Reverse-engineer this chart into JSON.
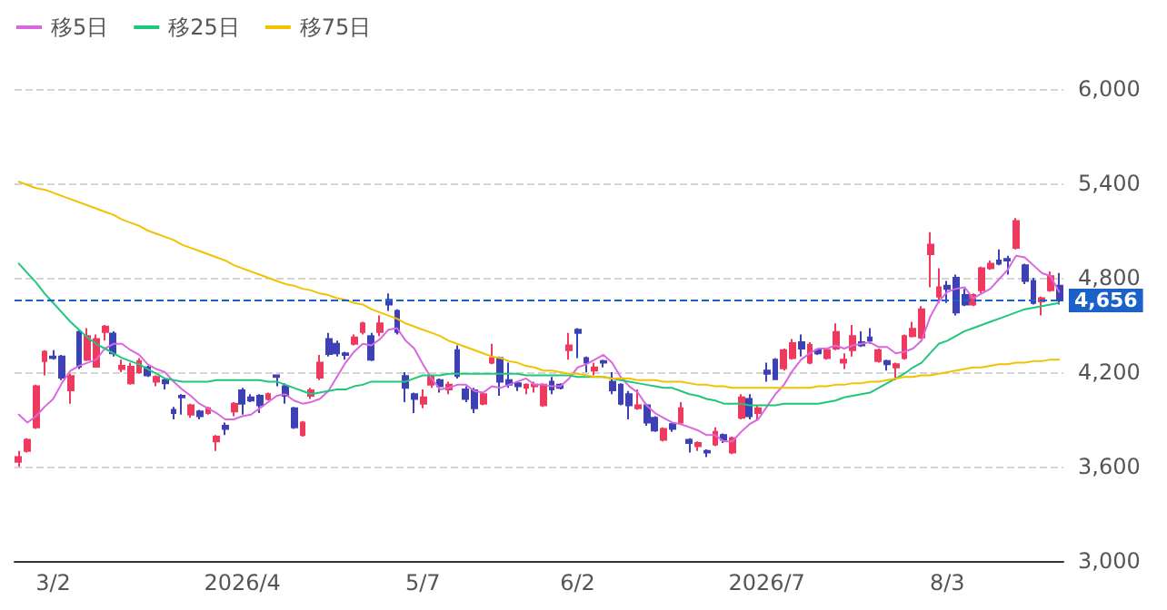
{
  "chart_data": {
    "type": "candlestick",
    "categories": [
      null,
      null,
      null,
      null,
      "3/2",
      null,
      null,
      null,
      null,
      null,
      null,
      null,
      null,
      null,
      null,
      null,
      null,
      null,
      null,
      null,
      null,
      null,
      null,
      null,
      null,
      null,
      "2026/4",
      null,
      null,
      null,
      null,
      null,
      null,
      null,
      null,
      null,
      null,
      null,
      null,
      null,
      null,
      null,
      null,
      null,
      null,
      null,
      null,
      "5/7",
      null,
      null,
      null,
      null,
      null,
      null,
      null,
      null,
      null,
      null,
      null,
      null,
      null,
      null,
      null,
      null,
      null,
      "6/2",
      null,
      null,
      null,
      null,
      null,
      null,
      null,
      null,
      null,
      null,
      null,
      null,
      null,
      null,
      null,
      null,
      null,
      null,
      null,
      null,
      null,
      "2026/7",
      null,
      null,
      null,
      null,
      null,
      null,
      null,
      null,
      null,
      null,
      null,
      null,
      null,
      null,
      null,
      null,
      null,
      null,
      null,
      null,
      "8/3",
      null,
      null,
      null,
      null,
      null,
      null,
      null,
      null,
      null,
      null,
      null,
      null,
      null
    ],
    "ohlc": [
      [
        3630,
        3700,
        3600,
        3660
      ],
      [
        3700,
        3780,
        3690,
        3770
      ],
      [
        3850,
        4120,
        3840,
        4110
      ],
      [
        4270,
        4340,
        4180,
        4330
      ],
      [
        4300,
        4340,
        4280,
        4290
      ],
      [
        4300,
        4310,
        4150,
        4165
      ],
      [
        4085,
        4190,
        4000,
        4175
      ],
      [
        4455,
        4470,
        4220,
        4235
      ],
      [
        4280,
        4480,
        4270,
        4430
      ],
      [
        4235,
        4440,
        4230,
        4410
      ],
      [
        4455,
        4500,
        4400,
        4490
      ],
      [
        4445,
        4460,
        4300,
        4320
      ],
      [
        4220,
        4280,
        4200,
        4240
      ],
      [
        4130,
        4260,
        4120,
        4235
      ],
      [
        4200,
        4290,
        4190,
        4270
      ],
      [
        4230,
        4240,
        4170,
        4180
      ],
      [
        4140,
        4180,
        4110,
        4170
      ],
      [
        4150,
        4160,
        4090,
        4130
      ],
      [
        3960,
        3980,
        3900,
        3940
      ],
      [
        4050,
        4060,
        3930,
        4040
      ],
      [
        3930,
        4000,
        3910,
        3990
      ],
      [
        3950,
        3960,
        3900,
        3920
      ],
      [
        3940,
        3980,
        3930,
        3970
      ],
      [
        3760,
        3800,
        3700,
        3790
      ],
      [
        3860,
        3880,
        3800,
        3840
      ],
      [
        3950,
        4010,
        3920,
        4000
      ],
      [
        4085,
        4100,
        3930,
        4000
      ],
      [
        4040,
        4060,
        4010,
        4020
      ],
      [
        4050,
        4060,
        3940,
        3990
      ],
      [
        4030,
        4070,
        4020,
        4060
      ],
      [
        4180,
        4180,
        4110,
        4170
      ],
      [
        4110,
        4130,
        4000,
        4050
      ],
      [
        3970,
        3980,
        3840,
        3850
      ],
      [
        3800,
        3890,
        3790,
        3880
      ],
      [
        4050,
        4100,
        4030,
        4085
      ],
      [
        4165,
        4310,
        4150,
        4260
      ],
      [
        4410,
        4450,
        4300,
        4315
      ],
      [
        4380,
        4400,
        4300,
        4320
      ],
      [
        4320,
        4330,
        4280,
        4310
      ],
      [
        4380,
        4440,
        4370,
        4420
      ],
      [
        4455,
        4520,
        4440,
        4510
      ],
      [
        4430,
        4450,
        4270,
        4280
      ],
      [
        4455,
        4560,
        4430,
        4510
      ],
      [
        4660,
        4700,
        4590,
        4630
      ],
      [
        4590,
        4600,
        4440,
        4455
      ],
      [
        4175,
        4200,
        4010,
        4100
      ],
      [
        4060,
        4070,
        3940,
        4030
      ],
      [
        4000,
        4090,
        3970,
        4040
      ],
      [
        4120,
        4180,
        4100,
        4175
      ],
      [
        4150,
        4160,
        4070,
        4110
      ],
      [
        4090,
        4140,
        4060,
        4120
      ],
      [
        4340,
        4370,
        4160,
        4175
      ],
      [
        4090,
        4110,
        4010,
        4030
      ],
      [
        4085,
        4100,
        3940,
        3970
      ],
      [
        4000,
        4070,
        3990,
        4060
      ],
      [
        4260,
        4380,
        4250,
        4290
      ],
      [
        4290,
        4300,
        4050,
        4140
      ],
      [
        4150,
        4260,
        4100,
        4120
      ],
      [
        4130,
        4140,
        4080,
        4110
      ],
      [
        4100,
        4130,
        4060,
        4120
      ],
      [
        4110,
        4140,
        4070,
        4120
      ],
      [
        3990,
        4130,
        3980,
        4120
      ],
      [
        4140,
        4170,
        4060,
        4090
      ],
      [
        4120,
        4130,
        4090,
        4100
      ],
      [
        4340,
        4450,
        4280,
        4370
      ],
      [
        4470,
        4480,
        4290,
        4450
      ],
      [
        4290,
        4300,
        4200,
        4260
      ],
      [
        4210,
        4260,
        4180,
        4230
      ],
      [
        4270,
        4280,
        4230,
        4260
      ],
      [
        4140,
        4200,
        4060,
        4085
      ],
      [
        4120,
        4130,
        3990,
        4000
      ],
      [
        4060,
        4080,
        3900,
        3990
      ],
      [
        3970,
        4090,
        3960,
        3990
      ],
      [
        3990,
        4000,
        3860,
        3880
      ],
      [
        3910,
        3920,
        3820,
        3830
      ],
      [
        3770,
        3850,
        3760,
        3840
      ],
      [
        3870,
        3880,
        3820,
        3840
      ],
      [
        3880,
        4010,
        3870,
        3970
      ],
      [
        3770,
        3780,
        3690,
        3750
      ],
      [
        3730,
        3760,
        3700,
        3750
      ],
      [
        3700,
        3710,
        3660,
        3690
      ],
      [
        3740,
        3850,
        3730,
        3820
      ],
      [
        3800,
        3810,
        3750,
        3770
      ],
      [
        3690,
        3790,
        3680,
        3780
      ],
      [
        3910,
        4060,
        3900,
        4040
      ],
      [
        4030,
        4060,
        3900,
        3920
      ],
      [
        3940,
        3990,
        3900,
        3970
      ],
      [
        4210,
        4260,
        4140,
        4190
      ],
      [
        4280,
        4290,
        4150,
        4155
      ],
      [
        4225,
        4350,
        4210,
        4340
      ],
      [
        4290,
        4410,
        4280,
        4385
      ],
      [
        4390,
        4440,
        4300,
        4350
      ],
      [
        4260,
        4390,
        4250,
        4375
      ],
      [
        4340,
        4350,
        4310,
        4320
      ],
      [
        4290,
        4350,
        4280,
        4340
      ],
      [
        4350,
        4510,
        4340,
        4455
      ],
      [
        4260,
        4320,
        4220,
        4280
      ],
      [
        4340,
        4500,
        4300,
        4430
      ],
      [
        4390,
        4460,
        4360,
        4370
      ],
      [
        4420,
        4480,
        4380,
        4400
      ],
      [
        4270,
        4350,
        4260,
        4340
      ],
      [
        4270,
        4280,
        4210,
        4250
      ],
      [
        4230,
        4260,
        4150,
        4250
      ],
      [
        4290,
        4440,
        4280,
        4430
      ],
      [
        4430,
        4520,
        4420,
        4475
      ],
      [
        4420,
        4620,
        4410,
        4600
      ],
      [
        4950,
        5090,
        4740,
        5010
      ],
      [
        4680,
        4860,
        4640,
        4740
      ],
      [
        4750,
        4780,
        4640,
        4730
      ],
      [
        4800,
        4820,
        4560,
        4580
      ],
      [
        4690,
        4730,
        4620,
        4630
      ],
      [
        4630,
        4700,
        4620,
        4690
      ],
      [
        4720,
        4870,
        4700,
        4860
      ],
      [
        4860,
        4910,
        4850,
        4890
      ],
      [
        4910,
        4980,
        4880,
        4890
      ],
      [
        4920,
        4940,
        4820,
        4910
      ],
      [
        4990,
        5180,
        4980,
        5160
      ],
      [
        4880,
        4890,
        4760,
        4780
      ],
      [
        4780,
        4800,
        4630,
        4640
      ],
      [
        4650,
        4680,
        4560,
        4670
      ],
      [
        4720,
        4840,
        4710,
        4810
      ],
      [
        4750,
        4830,
        4630,
        4656
      ]
    ],
    "colors": [
      "#ee3a5e",
      "#ee3a5e",
      "#ee3a5e",
      "#ee3a5e",
      "#3e41b3",
      "#3e41b3",
      "#ee3a5e",
      "#3e41b3",
      "#ee3a5e",
      "#ee3a5e",
      "#ee3a5e",
      "#3e41b3",
      "#ee3a5e",
      "#ee3a5e",
      "#ee3a5e",
      "#3e41b3",
      "#ee3a5e",
      "#3e41b3",
      "#3e41b3",
      "#3e41b3",
      "#ee3a5e",
      "#3e41b3",
      "#ee3a5e",
      "#ee3a5e",
      "#3e41b3",
      "#ee3a5e",
      "#3e41b3",
      "#3e41b3",
      "#3e41b3",
      "#ee3a5e",
      "#3e41b3",
      "#3e41b3",
      "#3e41b3",
      "#ee3a5e",
      "#ee3a5e",
      "#ee3a5e",
      "#3e41b3",
      "#3e41b3",
      "#3e41b3",
      "#ee3a5e",
      "#ee3a5e",
      "#3e41b3",
      "#ee3a5e",
      "#3e41b3",
      "#3e41b3",
      "#3e41b3",
      "#3e41b3",
      "#ee3a5e",
      "#ee3a5e",
      "#3e41b3",
      "#ee3a5e",
      "#3e41b3",
      "#3e41b3",
      "#3e41b3",
      "#ee3a5e",
      "#ee3a5e",
      "#3e41b3",
      "#3e41b3",
      "#3e41b3",
      "#ee3a5e",
      "#ee3a5e",
      "#ee3a5e",
      "#3e41b3",
      "#3e41b3",
      "#ee3a5e",
      "#3e41b3",
      "#3e41b3",
      "#ee3a5e",
      "#3e41b3",
      "#3e41b3",
      "#3e41b3",
      "#3e41b3",
      "#ee3a5e",
      "#3e41b3",
      "#3e41b3",
      "#ee3a5e",
      "#3e41b3",
      "#ee3a5e",
      "#3e41b3",
      "#ee3a5e",
      "#3e41b3",
      "#ee3a5e",
      "#3e41b3",
      "#ee3a5e",
      "#ee3a5e",
      "#3e41b3",
      "#ee3a5e",
      "#3e41b3",
      "#3e41b3",
      "#ee3a5e",
      "#ee3a5e",
      "#3e41b3",
      "#ee3a5e",
      "#3e41b3",
      "#ee3a5e",
      "#ee3a5e",
      "#ee3a5e",
      "#ee3a5e",
      "#3e41b3",
      "#3e41b3",
      "#ee3a5e",
      "#3e41b3",
      "#ee3a5e",
      "#ee3a5e",
      "#ee3a5e",
      "#ee3a5e",
      "#ee3a5e",
      "#ee3a5e",
      "#3e41b3",
      "#3e41b3",
      "#3e41b3",
      "#ee3a5e",
      "#ee3a5e",
      "#ee3a5e",
      "#3e41b3",
      "#3e41b3",
      "#ee3a5e",
      "#3e41b3",
      "#3e41b3",
      "#ee3a5e",
      "#ee3a5e",
      "#3e41b3"
    ],
    "series": [
      {
        "name": "移5日",
        "type": "line",
        "color": "#d968e0",
        "values": [
          3930,
          3880,
          3920,
          3980,
          4030,
          4130,
          4210,
          4240,
          4260,
          4280,
          4350,
          4380,
          4380,
          4340,
          4310,
          4250,
          4220,
          4200,
          4140,
          4090,
          4050,
          4000,
          3970,
          3940,
          3900,
          3900,
          3920,
          3930,
          3970,
          4010,
          4050,
          4060,
          4020,
          4000,
          4010,
          4030,
          4080,
          4170,
          4260,
          4330,
          4380,
          4370,
          4410,
          4470,
          4480,
          4400,
          4350,
          4250,
          4160,
          4090,
          4100,
          4120,
          4120,
          4080,
          4070,
          4110,
          4100,
          4120,
          4140,
          4160,
          4120,
          4120,
          4110,
          4110,
          4160,
          4230,
          4250,
          4280,
          4310,
          4260,
          4170,
          4110,
          4070,
          3990,
          3940,
          3910,
          3880,
          3870,
          3850,
          3830,
          3800,
          3800,
          3760,
          3760,
          3820,
          3870,
          3900,
          3980,
          4060,
          4120,
          4210,
          4280,
          4320,
          4350,
          4350,
          4370,
          4350,
          4370,
          4380,
          4390,
          4360,
          4360,
          4320,
          4330,
          4350,
          4400,
          4550,
          4650,
          4710,
          4730,
          4740,
          4670,
          4700,
          4730,
          4790,
          4850,
          4940,
          4930,
          4880,
          4830,
          4810,
          4710
        ]
      },
      {
        "name": "移25日",
        "type": "line",
        "color": "#1fc77a",
        "values": [
          4890,
          4830,
          4770,
          4700,
          4640,
          4580,
          4520,
          4470,
          4420,
          4380,
          4350,
          4320,
          4290,
          4270,
          4250,
          4220,
          4190,
          4160,
          4150,
          4140,
          4140,
          4140,
          4140,
          4150,
          4150,
          4150,
          4150,
          4150,
          4150,
          4140,
          4140,
          4120,
          4100,
          4080,
          4060,
          4070,
          4080,
          4090,
          4090,
          4110,
          4120,
          4140,
          4140,
          4140,
          4140,
          4140,
          4160,
          4180,
          4180,
          4180,
          4190,
          4190,
          4190,
          4190,
          4190,
          4190,
          4190,
          4190,
          4190,
          4180,
          4180,
          4180,
          4180,
          4180,
          4180,
          4170,
          4170,
          4170,
          4170,
          4160,
          4150,
          4140,
          4130,
          4120,
          4110,
          4100,
          4100,
          4080,
          4060,
          4050,
          4030,
          4020,
          4000,
          4000,
          4000,
          3990,
          3990,
          3990,
          3990,
          4000,
          4000,
          4000,
          4000,
          4000,
          4010,
          4020,
          4040,
          4050,
          4060,
          4070,
          4100,
          4130,
          4160,
          4190,
          4230,
          4260,
          4320,
          4380,
          4400,
          4430,
          4460,
          4480,
          4500,
          4520,
          4540,
          4560,
          4580,
          4600,
          4610,
          4620,
          4630,
          4640
        ]
      },
      {
        "name": "移75日",
        "type": "line",
        "color": "#f2c200",
        "values": [
          5410,
          5390,
          5370,
          5360,
          5340,
          5320,
          5300,
          5280,
          5260,
          5240,
          5220,
          5200,
          5170,
          5150,
          5130,
          5100,
          5080,
          5060,
          5040,
          5010,
          4990,
          4970,
          4950,
          4930,
          4910,
          4880,
          4860,
          4840,
          4820,
          4800,
          4780,
          4760,
          4750,
          4730,
          4720,
          4700,
          4690,
          4670,
          4660,
          4640,
          4630,
          4600,
          4580,
          4560,
          4540,
          4510,
          4490,
          4470,
          4450,
          4430,
          4400,
          4380,
          4360,
          4340,
          4320,
          4300,
          4290,
          4270,
          4260,
          4240,
          4230,
          4210,
          4210,
          4200,
          4190,
          4190,
          4180,
          4170,
          4170,
          4160,
          4160,
          4160,
          4150,
          4150,
          4150,
          4140,
          4140,
          4140,
          4130,
          4120,
          4120,
          4110,
          4110,
          4100,
          4100,
          4100,
          4100,
          4100,
          4100,
          4100,
          4100,
          4100,
          4100,
          4110,
          4110,
          4120,
          4120,
          4130,
          4130,
          4140,
          4140,
          4150,
          4160,
          4170,
          4170,
          4180,
          4180,
          4190,
          4200,
          4210,
          4220,
          4230,
          4230,
          4240,
          4250,
          4250,
          4260,
          4260,
          4270,
          4270,
          4280,
          4280
        ]
      }
    ],
    "ylim": [
      3000,
      6000
    ],
    "yticks": [
      {
        "value": 3000,
        "label": "3,000"
      },
      {
        "value": 3600,
        "label": "3,600"
      },
      {
        "value": 4200,
        "label": "4,200"
      },
      {
        "value": 4800,
        "label": "4,800"
      },
      {
        "value": 5400,
        "label": "5,400"
      },
      {
        "value": 6000,
        "label": "6,000"
      }
    ],
    "ref_lines": [
      {
        "axis": "y",
        "value": 4656,
        "label": "4,656",
        "color": "#1b62c8",
        "line_style": "dashed"
      }
    ],
    "grid": "y",
    "legend": "top left",
    "marker": "none",
    "line_style": "solid"
  }
}
